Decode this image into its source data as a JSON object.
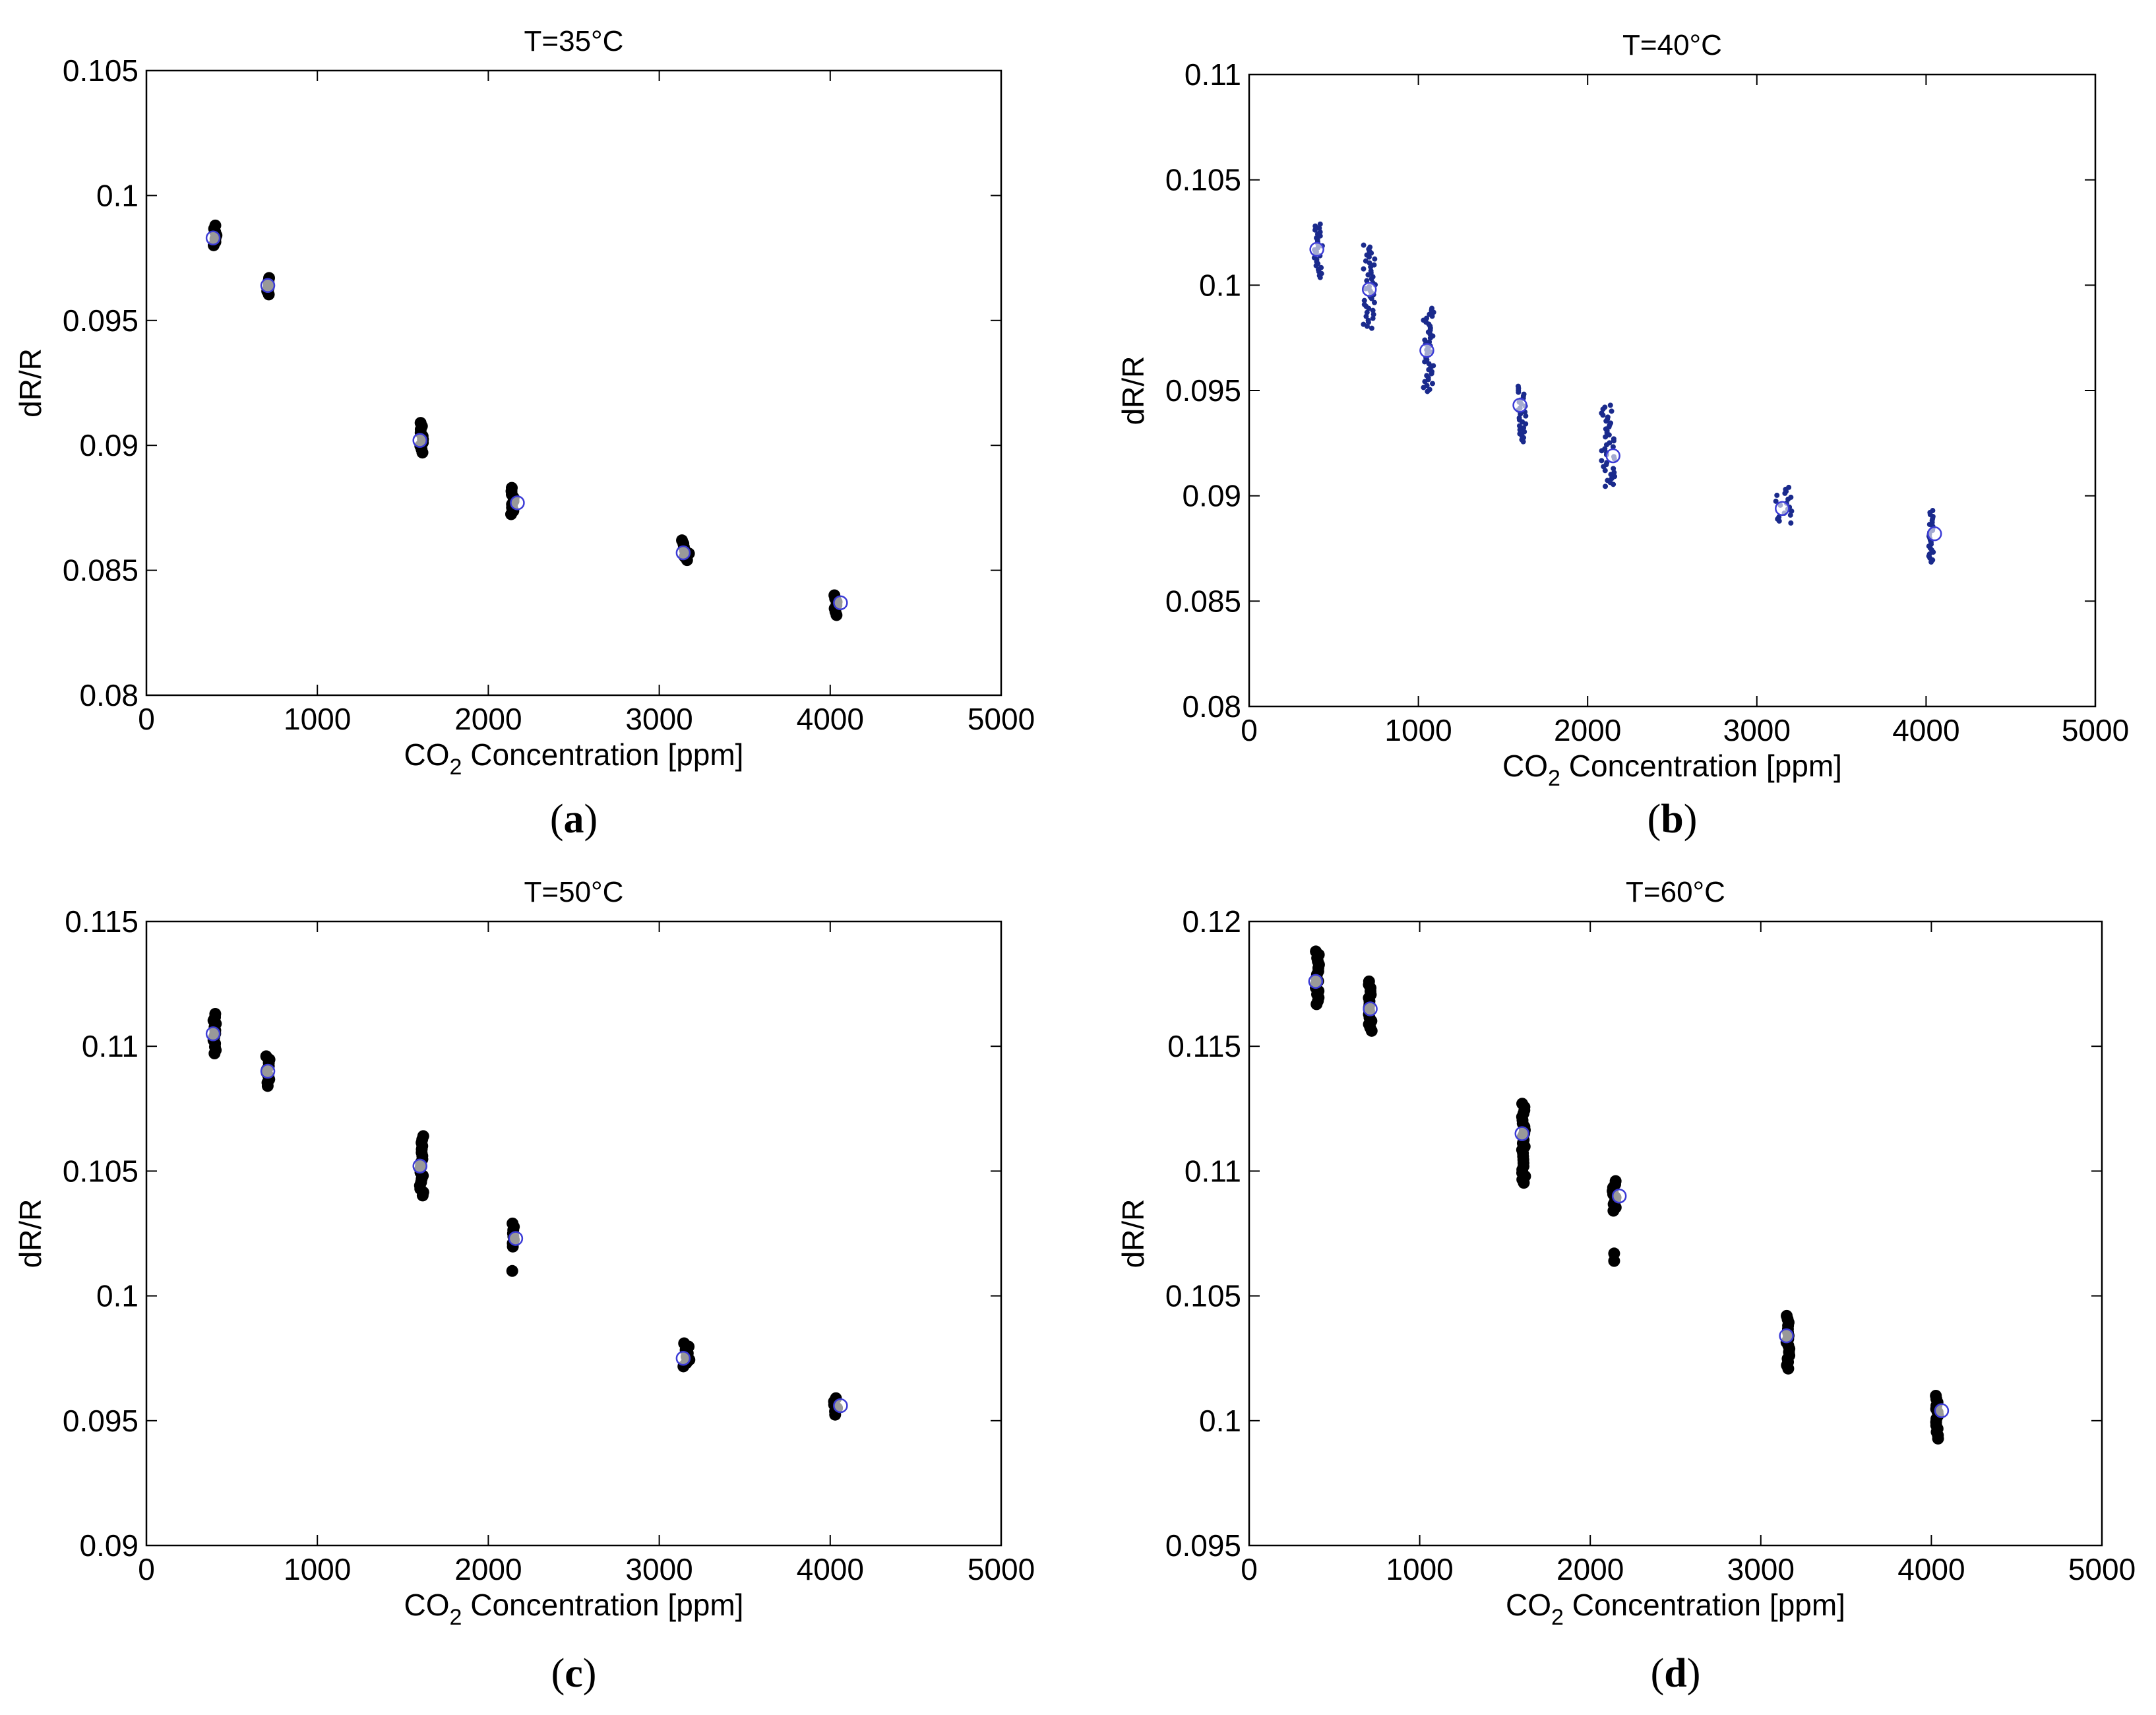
{
  "chart_data": [
    {
      "type": "scatter",
      "panel": "(a)",
      "panel_letter": "a",
      "title": "T=35°C",
      "xlabel": "CO2 Concentration [ppm]",
      "xlabel_main": "CO",
      "xlabel_sub": "2",
      "xlabel_rest": " Concentration [ppm]",
      "ylabel": "dR/R",
      "xlim": [
        0,
        5000
      ],
      "ylim": [
        0.08,
        0.105
      ],
      "xticks": [
        0,
        1000,
        2000,
        3000,
        4000,
        5000
      ],
      "xtick_labels": [
        "0",
        "1000",
        "2000",
        "3000",
        "4000",
        "5000"
      ],
      "yticks": [
        0.08,
        0.085,
        0.09,
        0.095,
        0.1,
        0.105
      ],
      "ytick_labels": [
        "0.08",
        "0.085",
        "0.09",
        "0.095",
        "0.1",
        "0.105"
      ],
      "marker_color": "#000000",
      "series": [
        {
          "name": "measured",
          "style": "filled",
          "clusters": [
            {
              "x": 400,
              "ymin": 0.0979,
              "ymax": 0.0988,
              "xspread": 10
            },
            {
              "x": 710,
              "ymin": 0.096,
              "ymax": 0.0967,
              "xspread": 10
            },
            {
              "x": 1610,
              "ymin": 0.0897,
              "ymax": 0.0909,
              "xspread": 10
            },
            {
              "x": 2140,
              "ymin": 0.0872,
              "ymax": 0.0883,
              "xspread": 10
            },
            {
              "x": 3150,
              "ymin": 0.0854,
              "ymax": 0.0862,
              "xspread": 25
            },
            {
              "x": 4030,
              "ymin": 0.0832,
              "ymax": 0.084,
              "xspread": 10
            }
          ]
        },
        {
          "name": "mean",
          "style": "open-circle",
          "color": "#3b3bd6",
          "points": [
            {
              "x": 390,
              "y": 0.0983
            },
            {
              "x": 710,
              "y": 0.0964
            },
            {
              "x": 1600,
              "y": 0.0902
            },
            {
              "x": 2170,
              "y": 0.0877
            },
            {
              "x": 3140,
              "y": 0.0857
            },
            {
              "x": 4060,
              "y": 0.0837
            }
          ]
        }
      ]
    },
    {
      "type": "scatter",
      "panel": "(b)",
      "panel_letter": "b",
      "title": "T=40°C",
      "xlabel": "CO2 Concentration [ppm]",
      "xlabel_main": "CO",
      "xlabel_sub": "2",
      "xlabel_rest": " Concentration [ppm]",
      "ylabel": "dR/R",
      "xlim": [
        0,
        5000
      ],
      "ylim": [
        0.08,
        0.11
      ],
      "xticks": [
        0,
        1000,
        2000,
        3000,
        4000,
        5000
      ],
      "xtick_labels": [
        "0",
        "1000",
        "2000",
        "3000",
        "4000",
        "5000"
      ],
      "yticks": [
        0.08,
        0.085,
        0.09,
        0.095,
        0.1,
        0.105,
        0.11
      ],
      "ytick_labels": [
        "0.08",
        "0.085",
        "0.09",
        "0.095",
        "0.1",
        "0.105",
        "0.11"
      ],
      "marker_color": "#1a2a8c",
      "series": [
        {
          "name": "measured",
          "style": "small-dots",
          "clusters": [
            {
              "x": 410,
              "ymin": 0.1003,
              "ymax": 0.1029,
              "xspread": 25
            },
            {
              "x": 710,
              "ymin": 0.0979,
              "ymax": 0.1019,
              "xspread": 35
            },
            {
              "x": 1060,
              "ymin": 0.0949,
              "ymax": 0.0989,
              "xspread": 30
            },
            {
              "x": 1610,
              "ymin": 0.0925,
              "ymax": 0.0952,
              "xspread": 25
            },
            {
              "x": 2120,
              "ymin": 0.0904,
              "ymax": 0.0943,
              "xspread": 40
            },
            {
              "x": 3160,
              "ymin": 0.0887,
              "ymax": 0.0904,
              "xspread": 50
            },
            {
              "x": 4030,
              "ymin": 0.0868,
              "ymax": 0.0893,
              "xspread": 15
            }
          ]
        },
        {
          "name": "mean",
          "style": "open-circle",
          "color": "#3b3bd6",
          "points": [
            {
              "x": 400,
              "y": 0.1017
            },
            {
              "x": 710,
              "y": 0.0998
            },
            {
              "x": 1050,
              "y": 0.0969
            },
            {
              "x": 1600,
              "y": 0.0943
            },
            {
              "x": 2150,
              "y": 0.0919
            },
            {
              "x": 3150,
              "y": 0.0894
            },
            {
              "x": 4050,
              "y": 0.0882
            }
          ]
        }
      ]
    },
    {
      "type": "scatter",
      "panel": "(c)",
      "panel_letter": "c",
      "title": "T=50°C",
      "xlabel": "CO2 Concentration [ppm]",
      "xlabel_main": "CO",
      "xlabel_sub": "2",
      "xlabel_rest": " Concentration [ppm]",
      "ylabel": "dR/R",
      "xlim": [
        0,
        5000
      ],
      "ylim": [
        0.09,
        0.115
      ],
      "xticks": [
        0,
        1000,
        2000,
        3000,
        4000,
        5000
      ],
      "xtick_labels": [
        "0",
        "1000",
        "2000",
        "3000",
        "4000",
        "5000"
      ],
      "yticks": [
        0.09,
        0.095,
        0.1,
        0.105,
        0.11,
        0.115
      ],
      "ytick_labels": [
        "0.09",
        "0.095",
        "0.1",
        "0.105",
        "0.11",
        "0.115"
      ],
      "marker_color": "#000000",
      "series": [
        {
          "name": "measured",
          "style": "filled",
          "clusters": [
            {
              "x": 400,
              "ymin": 0.1097,
              "ymax": 0.1113,
              "xspread": 10
            },
            {
              "x": 710,
              "ymin": 0.1084,
              "ymax": 0.1096,
              "xspread": 10
            },
            {
              "x": 1610,
              "ymin": 0.1039,
              "ymax": 0.1064,
              "xspread": 10
            },
            {
              "x": 2140,
              "ymin": 0.1019,
              "ymax": 0.1029,
              "xspread": 10,
              "extra": [
                0.101
              ]
            },
            {
              "x": 3160,
              "ymin": 0.0971,
              "ymax": 0.0981,
              "xspread": 20
            },
            {
              "x": 4030,
              "ymin": 0.0952,
              "ymax": 0.0959,
              "xspread": 10
            }
          ]
        },
        {
          "name": "mean",
          "style": "open-circle",
          "color": "#3b3bd6",
          "points": [
            {
              "x": 390,
              "y": 0.1105
            },
            {
              "x": 710,
              "y": 0.109
            },
            {
              "x": 1600,
              "y": 0.1052
            },
            {
              "x": 2160,
              "y": 0.1023
            },
            {
              "x": 3140,
              "y": 0.0975
            },
            {
              "x": 4060,
              "y": 0.0956
            }
          ]
        }
      ]
    },
    {
      "type": "scatter",
      "panel": "(d)",
      "panel_letter": "d",
      "title": "T=60°C",
      "xlabel": "CO2 Concentration [ppm]",
      "xlabel_main": "CO",
      "xlabel_sub": "2",
      "xlabel_rest": " Concentration [ppm]",
      "ylabel": "dR/R",
      "xlim": [
        0,
        5000
      ],
      "ylim": [
        0.095,
        0.12
      ],
      "xticks": [
        0,
        1000,
        2000,
        3000,
        4000,
        5000
      ],
      "xtick_labels": [
        "0",
        "1000",
        "2000",
        "3000",
        "4000",
        "5000"
      ],
      "yticks": [
        0.095,
        0.1,
        0.105,
        0.11,
        0.115,
        0.12
      ],
      "ytick_labels": [
        "0.095",
        "0.1",
        "0.105",
        "0.11",
        "0.115",
        "0.12"
      ],
      "marker_color": "#000000",
      "series": [
        {
          "name": "measured",
          "style": "filled",
          "clusters": [
            {
              "x": 400,
              "ymin": 0.1166,
              "ymax": 0.1188,
              "xspread": 10
            },
            {
              "x": 710,
              "ymin": 0.1156,
              "ymax": 0.1176,
              "xspread": 10
            },
            {
              "x": 1610,
              "ymin": 0.1094,
              "ymax": 0.1127,
              "xspread": 10
            },
            {
              "x": 2140,
              "ymin": 0.1083,
              "ymax": 0.1096,
              "xspread": 10,
              "extra": [
                0.1064,
                0.1067
              ]
            },
            {
              "x": 3160,
              "ymin": 0.102,
              "ymax": 0.1042,
              "xspread": 10
            },
            {
              "x": 4030,
              "ymin": 0.0992,
              "ymax": 0.101,
              "xspread": 10
            }
          ]
        },
        {
          "name": "mean",
          "style": "open-circle",
          "color": "#3b3bd6",
          "points": [
            {
              "x": 390,
              "y": 0.1176
            },
            {
              "x": 710,
              "y": 0.1165
            },
            {
              "x": 1600,
              "y": 0.1115
            },
            {
              "x": 2170,
              "y": 0.109
            },
            {
              "x": 3150,
              "y": 0.1034
            },
            {
              "x": 4060,
              "y": 0.1004
            }
          ]
        }
      ]
    }
  ]
}
